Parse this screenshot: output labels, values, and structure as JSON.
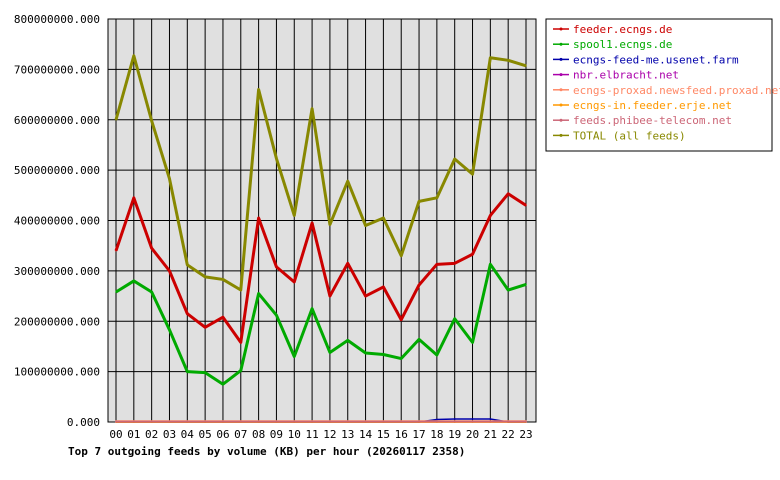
{
  "chart_data": {
    "type": "line",
    "title": "Top 7 outgoing feeds by volume (KB) per hour (20260117 2358)",
    "x": [
      "00",
      "01",
      "02",
      "03",
      "04",
      "05",
      "06",
      "07",
      "08",
      "09",
      "10",
      "11",
      "12",
      "13",
      "14",
      "15",
      "16",
      "17",
      "18",
      "19",
      "20",
      "21",
      "22",
      "23"
    ],
    "ylim": [
      0,
      800000000
    ],
    "yticks": [
      "0.000",
      "100000000.000",
      "200000000.000",
      "300000000.000",
      "400000000.000",
      "500000000.000",
      "600000000.000",
      "700000000.000",
      "800000000.000"
    ],
    "grid": true,
    "legend_position": "right",
    "plot_background": "#e0e0e0",
    "series": [
      {
        "name": "feeder.ecngs.de",
        "color": "#cc0000",
        "values": [
          340000000,
          445000000,
          345000000,
          300000000,
          215000000,
          188000000,
          208000000,
          158000000,
          405000000,
          308000000,
          278000000,
          395000000,
          250000000,
          315000000,
          250000000,
          268000000,
          203000000,
          272000000,
          313000000,
          315000000,
          333000000,
          410000000,
          453000000,
          430000000
        ]
      },
      {
        "name": "spool1.ecngs.de",
        "color": "#00aa00",
        "values": [
          258000000,
          280000000,
          258000000,
          183000000,
          100000000,
          98000000,
          75000000,
          102000000,
          255000000,
          212000000,
          130000000,
          225000000,
          138000000,
          162000000,
          137000000,
          134000000,
          126000000,
          164000000,
          133000000,
          205000000,
          158000000,
          313000000,
          262000000,
          273000000
        ]
      },
      {
        "name": "ecngs-feed-me.usenet.farm",
        "color": "#0000aa",
        "values": [
          0,
          0,
          0,
          0,
          0,
          0,
          0,
          0,
          0,
          0,
          0,
          0,
          0,
          0,
          0,
          0,
          0,
          0,
          5000000,
          6000000,
          6000000,
          6000000,
          0,
          0
        ]
      },
      {
        "name": "nbr.elbracht.net",
        "color": "#aa00aa",
        "values": [
          0,
          0,
          0,
          0,
          0,
          0,
          0,
          0,
          0,
          0,
          0,
          0,
          0,
          0,
          0,
          0,
          0,
          0,
          0,
          0,
          0,
          0,
          0,
          0
        ]
      },
      {
        "name": "ecngs-proxad.newsfeed.proxad.net",
        "color": "#ff8866",
        "values": [
          2000000,
          2000000,
          2000000,
          2000000,
          2000000,
          2000000,
          2000000,
          2000000,
          2000000,
          2000000,
          2000000,
          2000000,
          2000000,
          2000000,
          2000000,
          2000000,
          2000000,
          2000000,
          2000000,
          2000000,
          2000000,
          2000000,
          2000000,
          2000000
        ]
      },
      {
        "name": "ecngs-in.feeder.erje.net",
        "color": "#ff9900",
        "values": [
          0,
          0,
          0,
          0,
          0,
          0,
          0,
          0,
          0,
          0,
          0,
          0,
          0,
          0,
          0,
          0,
          0,
          0,
          0,
          0,
          0,
          0,
          0,
          0
        ]
      },
      {
        "name": "feeds.phibee-telecom.net",
        "color": "#cc6677",
        "values": [
          1000000,
          1000000,
          1000000,
          1000000,
          1000000,
          1000000,
          1000000,
          1000000,
          1000000,
          1000000,
          1000000,
          1000000,
          1000000,
          1000000,
          1000000,
          1000000,
          1000000,
          1000000,
          1000000,
          1000000,
          1000000,
          1000000,
          1000000,
          1000000
        ]
      },
      {
        "name": "TOTAL (all feeds)",
        "color": "#888800",
        "values": [
          600000000,
          727000000,
          598000000,
          483000000,
          312000000,
          288000000,
          283000000,
          262000000,
          660000000,
          523000000,
          410000000,
          622000000,
          392000000,
          478000000,
          390000000,
          405000000,
          330000000,
          438000000,
          445000000,
          522000000,
          492000000,
          723000000,
          718000000,
          707000000
        ]
      }
    ]
  }
}
